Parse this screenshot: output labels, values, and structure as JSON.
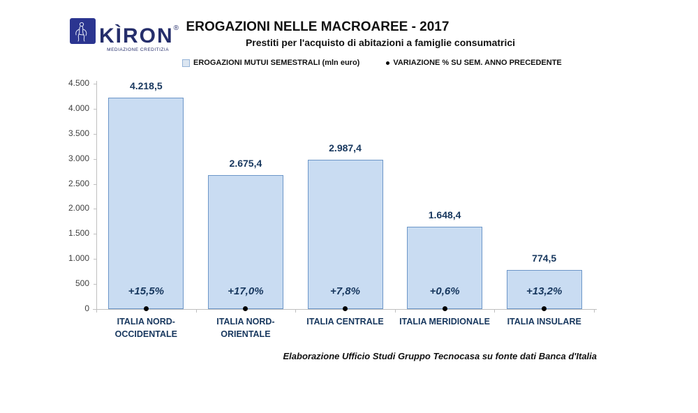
{
  "logo": {
    "brand": "KÌRON",
    "registered": "®",
    "tagline": "MEDIAZIONE CREDITIZIA"
  },
  "header": {
    "title": "EROGAZIONI NELLE MACROAREE -  2017",
    "subtitle": "Prestiti per l'acquisto di abitazioni a famiglie consumatrici"
  },
  "legend": [
    {
      "marker": "light-blue-square",
      "label": "EROGAZIONI MUTUI SEMESTRALI  (mln euro)"
    },
    {
      "marker": "black-dot",
      "label": "VARIAZIONE % SU SEM. ANNO PRECEDENTE"
    }
  ],
  "footer": {
    "source": "Elaborazione Ufficio Studi Gruppo Tecnocasa su fonte dati Banca d'Italia"
  },
  "colors": {
    "bar_fill": "#C9DCF2",
    "bar_border": "#6C96C8",
    "label_navy": "#17375E",
    "axis_gray": "#BFBFBF",
    "logo_navy": "#2B3590",
    "dot_black": "#000000"
  },
  "chart_data": {
    "type": "bar",
    "title": "EROGAZIONI NELLE MACROAREE - 2017",
    "subtitle": "Prestiti per l'acquisto di abitazioni a famiglie consumatrici",
    "categories": [
      "ITALIA NORD-OCCIDENTALE",
      "ITALIA NORD-ORIENTALE",
      "ITALIA CENTRALE",
      "ITALIA MERIDIONALE",
      "ITALIA INSULARE"
    ],
    "series": [
      {
        "name": "EROGAZIONI MUTUI SEMESTRALI (mln euro)",
        "type": "bar",
        "values": [
          4218.5,
          2675.4,
          2987.4,
          1648.4,
          774.5
        ],
        "labels": [
          "4.218,5",
          "2.675,4",
          "2.987,4",
          "1.648,4",
          "774,5"
        ]
      },
      {
        "name": "VARIAZIONE % SU SEM. ANNO PRECEDENTE",
        "type": "point",
        "values": [
          15.5,
          17.0,
          7.8,
          0.6,
          13.2
        ],
        "labels": [
          "+15,5%",
          "+17,0%",
          "+7,8%",
          "+0,6%",
          "+13,2%"
        ]
      }
    ],
    "ylim": [
      0,
      4500
    ],
    "ytick_interval": 500,
    "ytick_labels": [
      "0",
      "500",
      "1.000",
      "1.500",
      "2.000",
      "2.500",
      "3.000",
      "3.500",
      "4.000",
      "4.500"
    ],
    "grid": false,
    "legend_position": "top"
  }
}
